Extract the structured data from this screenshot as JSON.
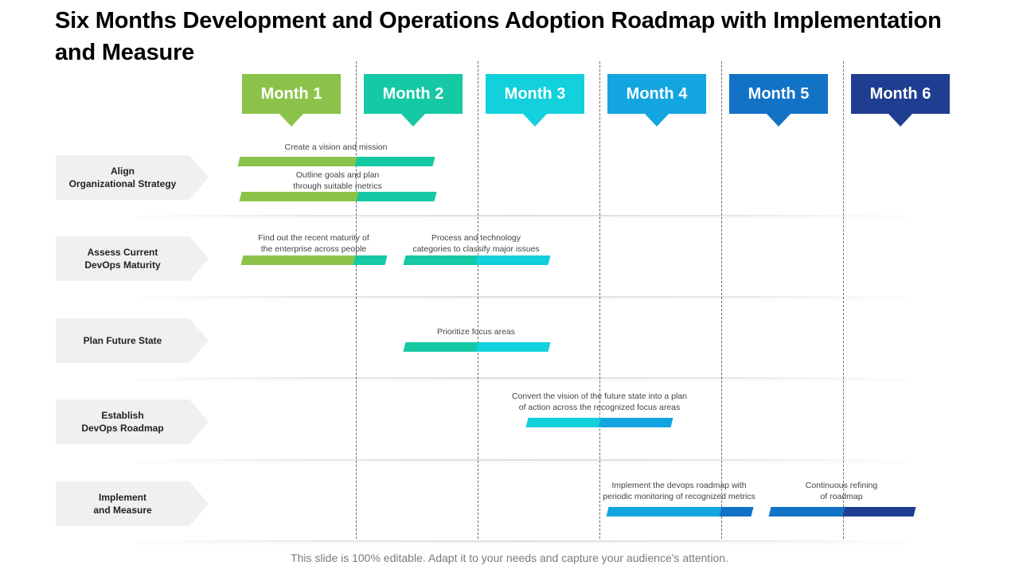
{
  "title": "Six Months Development and Operations Adoption Roadmap with Implementation and Measure",
  "months": [
    {
      "label": "Month 1",
      "color": "#8bc34a"
    },
    {
      "label": "Month 2",
      "color": "#14c9a3"
    },
    {
      "label": "Month 3",
      "color": "#12d0dc"
    },
    {
      "label": "Month 4",
      "color": "#13a5e0"
    },
    {
      "label": "Month 5",
      "color": "#1272c6"
    },
    {
      "label": "Month 6",
      "color": "#1f3d91"
    }
  ],
  "rows": [
    {
      "label": "Align\nOrganizational Strategy"
    },
    {
      "label": "Assess Current\nDevOps Maturity"
    },
    {
      "label": "Plan Future State"
    },
    {
      "label": "Establish\nDevOps Roadmap"
    },
    {
      "label": "Implement\nand Measure"
    }
  ],
  "tasks": [
    {
      "text": "Create a vision and mission",
      "start_month": 1,
      "end_month": 2,
      "row": 1
    },
    {
      "text": "Outline goals and plan\nthrough suitable metrics",
      "start_month": 1,
      "end_month": 2,
      "row": 1
    },
    {
      "text": "Find out the recent maturity of\nthe enterprise across people",
      "start_month": 1,
      "end_month": 2,
      "row": 2
    },
    {
      "text": "Process and technology\ncategories to classify major issues",
      "start_month": 2,
      "end_month": 3,
      "row": 2
    },
    {
      "text": "Prioritize focus areas",
      "start_month": 2,
      "end_month": 3,
      "row": 3
    },
    {
      "text": "Convert the vision of the future state into a plan\nof action across the recognized focus areas",
      "start_month": 3,
      "end_month": 4,
      "row": 4
    },
    {
      "text": "Implement the devops roadmap with\nperiodic monitoring of recognized metrics",
      "start_month": 4,
      "end_month": 5,
      "row": 5
    },
    {
      "text": "Continuous refining\nof roadmap",
      "start_month": 5,
      "end_month": 6,
      "row": 5
    }
  ],
  "footer": "This slide is 100% editable. Adapt it to your needs and capture your audience's attention."
}
